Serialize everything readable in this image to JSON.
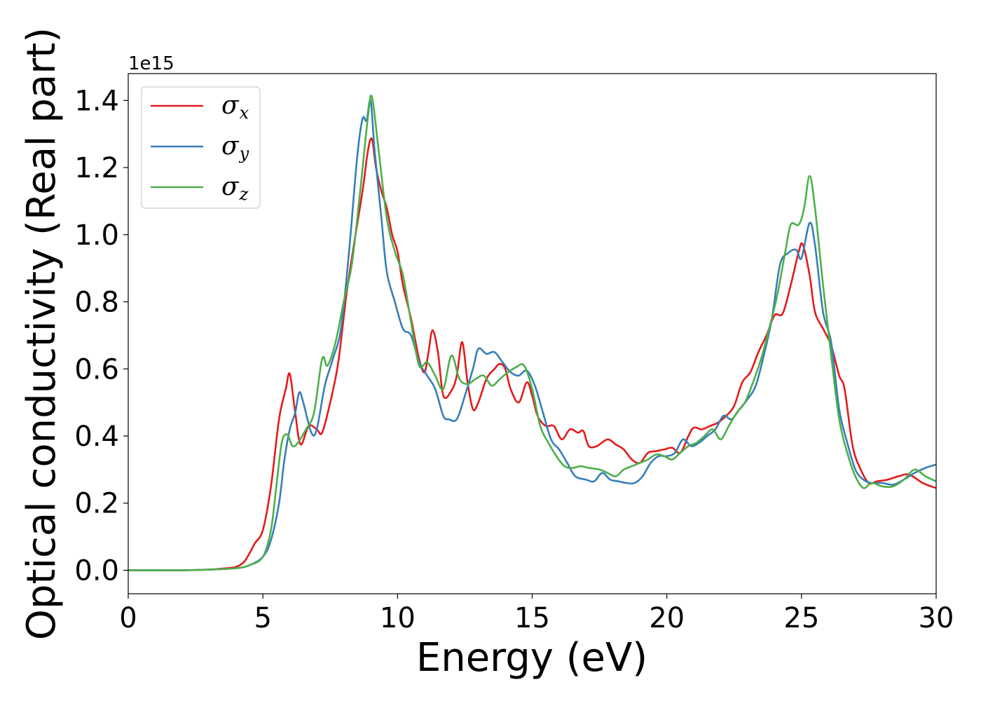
{
  "chart_data": {
    "type": "line",
    "title": "",
    "xlabel": "Energy (eV)",
    "ylabel": "Optical conductivity (Real part)",
    "y_offset_label": "1e15",
    "xlim": [
      0,
      30
    ],
    "ylim": [
      -0.07,
      1.48
    ],
    "x_ticks": [
      0,
      5,
      10,
      15,
      20,
      25,
      30
    ],
    "x_tick_labels": [
      "0",
      "5",
      "10",
      "15",
      "20",
      "25",
      "30"
    ],
    "y_ticks": [
      0.0,
      0.2,
      0.4,
      0.6,
      0.8,
      1.0,
      1.2,
      1.4
    ],
    "y_tick_labels": [
      "0.0",
      "0.2",
      "0.4",
      "0.6",
      "0.8",
      "1.0",
      "1.2",
      "1.4"
    ],
    "grid": false,
    "legend_position": "top-left",
    "series": [
      {
        "name": "σx",
        "symbol": "σ",
        "subscript": "x",
        "color": "#e41a1c",
        "points": [
          [
            0,
            0
          ],
          [
            2,
            0.0
          ],
          [
            3,
            0.002
          ],
          [
            3.5,
            0.005
          ],
          [
            4,
            0.01
          ],
          [
            4.3,
            0.025
          ],
          [
            4.5,
            0.05
          ],
          [
            4.7,
            0.08
          ],
          [
            5,
            0.12
          ],
          [
            5.3,
            0.25
          ],
          [
            5.6,
            0.45
          ],
          [
            5.85,
            0.54
          ],
          [
            6.0,
            0.585
          ],
          [
            6.2,
            0.47
          ],
          [
            6.4,
            0.375
          ],
          [
            6.7,
            0.43
          ],
          [
            7.0,
            0.42
          ],
          [
            7.2,
            0.41
          ],
          [
            7.5,
            0.5
          ],
          [
            7.8,
            0.62
          ],
          [
            8.1,
            0.82
          ],
          [
            8.4,
            0.98
          ],
          [
            8.7,
            1.13
          ],
          [
            8.9,
            1.25
          ],
          [
            9.05,
            1.285
          ],
          [
            9.2,
            1.2
          ],
          [
            9.4,
            1.13
          ],
          [
            9.6,
            1.08
          ],
          [
            9.8,
            1.0
          ],
          [
            10.0,
            0.95
          ],
          [
            10.2,
            0.85
          ],
          [
            10.5,
            0.75
          ],
          [
            10.8,
            0.63
          ],
          [
            11.0,
            0.59
          ],
          [
            11.15,
            0.65
          ],
          [
            11.3,
            0.715
          ],
          [
            11.5,
            0.65
          ],
          [
            11.7,
            0.52
          ],
          [
            12.0,
            0.535
          ],
          [
            12.2,
            0.58
          ],
          [
            12.4,
            0.68
          ],
          [
            12.6,
            0.56
          ],
          [
            12.8,
            0.48
          ],
          [
            13.0,
            0.5
          ],
          [
            13.3,
            0.57
          ],
          [
            13.6,
            0.6
          ],
          [
            13.8,
            0.615
          ],
          [
            14.0,
            0.6
          ],
          [
            14.2,
            0.54
          ],
          [
            14.5,
            0.5
          ],
          [
            14.8,
            0.56
          ],
          [
            15.0,
            0.52
          ],
          [
            15.2,
            0.46
          ],
          [
            15.5,
            0.43
          ],
          [
            15.8,
            0.43
          ],
          [
            16.1,
            0.39
          ],
          [
            16.4,
            0.42
          ],
          [
            16.7,
            0.41
          ],
          [
            16.9,
            0.415
          ],
          [
            17.1,
            0.37
          ],
          [
            17.4,
            0.37
          ],
          [
            17.8,
            0.39
          ],
          [
            18.1,
            0.375
          ],
          [
            18.4,
            0.36
          ],
          [
            18.7,
            0.33
          ],
          [
            19.0,
            0.32
          ],
          [
            19.3,
            0.35
          ],
          [
            19.6,
            0.355
          ],
          [
            19.9,
            0.36
          ],
          [
            20.2,
            0.365
          ],
          [
            20.5,
            0.35
          ],
          [
            20.8,
            0.4
          ],
          [
            21.0,
            0.425
          ],
          [
            21.3,
            0.42
          ],
          [
            21.6,
            0.43
          ],
          [
            21.9,
            0.44
          ],
          [
            22.2,
            0.46
          ],
          [
            22.5,
            0.49
          ],
          [
            22.8,
            0.56
          ],
          [
            23.1,
            0.59
          ],
          [
            23.4,
            0.65
          ],
          [
            23.7,
            0.7
          ],
          [
            24.0,
            0.76
          ],
          [
            24.3,
            0.765
          ],
          [
            24.6,
            0.85
          ],
          [
            24.9,
            0.95
          ],
          [
            25.05,
            0.97
          ],
          [
            25.3,
            0.88
          ],
          [
            25.5,
            0.77
          ],
          [
            25.8,
            0.72
          ],
          [
            26.1,
            0.67
          ],
          [
            26.4,
            0.58
          ],
          [
            26.6,
            0.54
          ],
          [
            26.9,
            0.37
          ],
          [
            27.2,
            0.3
          ],
          [
            27.5,
            0.26
          ],
          [
            27.8,
            0.265
          ],
          [
            28.2,
            0.27
          ],
          [
            28.6,
            0.28
          ],
          [
            29.0,
            0.285
          ],
          [
            29.5,
            0.26
          ],
          [
            30,
            0.245
          ]
        ]
      },
      {
        "name": "σy",
        "symbol": "σ",
        "subscript": "y",
        "color": "#377eb8",
        "points": [
          [
            0,
            0
          ],
          [
            2,
            0.0
          ],
          [
            3,
            0.002
          ],
          [
            4,
            0.006
          ],
          [
            4.5,
            0.015
          ],
          [
            5,
            0.04
          ],
          [
            5.3,
            0.09
          ],
          [
            5.6,
            0.2
          ],
          [
            5.8,
            0.33
          ],
          [
            6.0,
            0.42
          ],
          [
            6.2,
            0.47
          ],
          [
            6.35,
            0.53
          ],
          [
            6.5,
            0.5
          ],
          [
            6.8,
            0.41
          ],
          [
            7.0,
            0.42
          ],
          [
            7.3,
            0.55
          ],
          [
            7.6,
            0.63
          ],
          [
            7.9,
            0.72
          ],
          [
            8.2,
            0.95
          ],
          [
            8.5,
            1.23
          ],
          [
            8.7,
            1.345
          ],
          [
            8.85,
            1.34
          ],
          [
            9.0,
            1.4
          ],
          [
            9.15,
            1.25
          ],
          [
            9.4,
            1.05
          ],
          [
            9.6,
            0.89
          ],
          [
            9.9,
            0.8
          ],
          [
            10.2,
            0.72
          ],
          [
            10.5,
            0.7
          ],
          [
            10.8,
            0.62
          ],
          [
            11.1,
            0.58
          ],
          [
            11.4,
            0.54
          ],
          [
            11.7,
            0.46
          ],
          [
            11.9,
            0.45
          ],
          [
            12.2,
            0.45
          ],
          [
            12.5,
            0.52
          ],
          [
            12.8,
            0.6
          ],
          [
            13.0,
            0.66
          ],
          [
            13.3,
            0.645
          ],
          [
            13.6,
            0.65
          ],
          [
            13.9,
            0.62
          ],
          [
            14.2,
            0.59
          ],
          [
            14.5,
            0.58
          ],
          [
            14.8,
            0.595
          ],
          [
            15.1,
            0.55
          ],
          [
            15.4,
            0.47
          ],
          [
            15.7,
            0.39
          ],
          [
            16.0,
            0.36
          ],
          [
            16.3,
            0.32
          ],
          [
            16.6,
            0.28
          ],
          [
            17.0,
            0.27
          ],
          [
            17.3,
            0.265
          ],
          [
            17.6,
            0.29
          ],
          [
            17.9,
            0.27
          ],
          [
            18.2,
            0.265
          ],
          [
            18.5,
            0.26
          ],
          [
            18.8,
            0.26
          ],
          [
            19.1,
            0.28
          ],
          [
            19.4,
            0.32
          ],
          [
            19.7,
            0.34
          ],
          [
            20.0,
            0.34
          ],
          [
            20.3,
            0.35
          ],
          [
            20.6,
            0.39
          ],
          [
            20.9,
            0.37
          ],
          [
            21.2,
            0.38
          ],
          [
            21.5,
            0.4
          ],
          [
            21.8,
            0.42
          ],
          [
            22.1,
            0.46
          ],
          [
            22.4,
            0.45
          ],
          [
            22.7,
            0.48
          ],
          [
            23.0,
            0.51
          ],
          [
            23.3,
            0.55
          ],
          [
            23.6,
            0.64
          ],
          [
            23.9,
            0.75
          ],
          [
            24.2,
            0.91
          ],
          [
            24.5,
            0.945
          ],
          [
            24.8,
            0.955
          ],
          [
            25.0,
            0.93
          ],
          [
            25.3,
            1.035
          ],
          [
            25.5,
            0.97
          ],
          [
            25.8,
            0.77
          ],
          [
            26.1,
            0.68
          ],
          [
            26.4,
            0.48
          ],
          [
            26.7,
            0.38
          ],
          [
            27.0,
            0.3
          ],
          [
            27.3,
            0.27
          ],
          [
            27.6,
            0.26
          ],
          [
            28.0,
            0.26
          ],
          [
            28.4,
            0.255
          ],
          [
            28.8,
            0.27
          ],
          [
            29.2,
            0.29
          ],
          [
            29.6,
            0.305
          ],
          [
            30,
            0.315
          ]
        ]
      },
      {
        "name": "σz",
        "symbol": "σ",
        "subscript": "z",
        "color": "#4daf4a",
        "points": [
          [
            0,
            0
          ],
          [
            2,
            0.0
          ],
          [
            3,
            0.002
          ],
          [
            4,
            0.006
          ],
          [
            4.5,
            0.015
          ],
          [
            5,
            0.04
          ],
          [
            5.3,
            0.12
          ],
          [
            5.5,
            0.25
          ],
          [
            5.7,
            0.38
          ],
          [
            5.9,
            0.405
          ],
          [
            6.1,
            0.37
          ],
          [
            6.3,
            0.38
          ],
          [
            6.6,
            0.42
          ],
          [
            6.9,
            0.47
          ],
          [
            7.2,
            0.63
          ],
          [
            7.4,
            0.61
          ],
          [
            7.7,
            0.68
          ],
          [
            8.0,
            0.8
          ],
          [
            8.3,
            0.91
          ],
          [
            8.6,
            1.12
          ],
          [
            8.9,
            1.35
          ],
          [
            9.05,
            1.41
          ],
          [
            9.3,
            1.25
          ],
          [
            9.6,
            1.05
          ],
          [
            9.9,
            0.95
          ],
          [
            10.2,
            0.88
          ],
          [
            10.5,
            0.74
          ],
          [
            10.8,
            0.61
          ],
          [
            11.1,
            0.62
          ],
          [
            11.4,
            0.58
          ],
          [
            11.7,
            0.54
          ],
          [
            12.0,
            0.64
          ],
          [
            12.3,
            0.57
          ],
          [
            12.6,
            0.555
          ],
          [
            12.9,
            0.57
          ],
          [
            13.2,
            0.58
          ],
          [
            13.5,
            0.55
          ],
          [
            13.8,
            0.57
          ],
          [
            14.1,
            0.59
          ],
          [
            14.4,
            0.605
          ],
          [
            14.7,
            0.61
          ],
          [
            15.0,
            0.54
          ],
          [
            15.3,
            0.43
          ],
          [
            15.6,
            0.38
          ],
          [
            15.9,
            0.34
          ],
          [
            16.2,
            0.31
          ],
          [
            16.5,
            0.305
          ],
          [
            16.8,
            0.31
          ],
          [
            17.1,
            0.305
          ],
          [
            17.5,
            0.3
          ],
          [
            17.8,
            0.29
          ],
          [
            18.1,
            0.28
          ],
          [
            18.4,
            0.3
          ],
          [
            18.7,
            0.31
          ],
          [
            19.0,
            0.32
          ],
          [
            19.3,
            0.33
          ],
          [
            19.6,
            0.345
          ],
          [
            19.9,
            0.34
          ],
          [
            20.2,
            0.33
          ],
          [
            20.5,
            0.35
          ],
          [
            20.8,
            0.37
          ],
          [
            21.1,
            0.38
          ],
          [
            21.4,
            0.4
          ],
          [
            21.7,
            0.42
          ],
          [
            22.0,
            0.39
          ],
          [
            22.3,
            0.43
          ],
          [
            22.6,
            0.47
          ],
          [
            22.9,
            0.5
          ],
          [
            23.2,
            0.56
          ],
          [
            23.5,
            0.63
          ],
          [
            23.8,
            0.72
          ],
          [
            24.1,
            0.82
          ],
          [
            24.4,
            0.95
          ],
          [
            24.6,
            1.03
          ],
          [
            24.9,
            1.03
          ],
          [
            25.1,
            1.08
          ],
          [
            25.3,
            1.175
          ],
          [
            25.5,
            1.08
          ],
          [
            25.8,
            0.85
          ],
          [
            26.1,
            0.64
          ],
          [
            26.4,
            0.45
          ],
          [
            26.7,
            0.35
          ],
          [
            27.0,
            0.28
          ],
          [
            27.3,
            0.245
          ],
          [
            27.6,
            0.26
          ],
          [
            28.0,
            0.25
          ],
          [
            28.4,
            0.25
          ],
          [
            28.8,
            0.27
          ],
          [
            29.2,
            0.3
          ],
          [
            29.6,
            0.28
          ],
          [
            30,
            0.265
          ]
        ]
      }
    ]
  }
}
